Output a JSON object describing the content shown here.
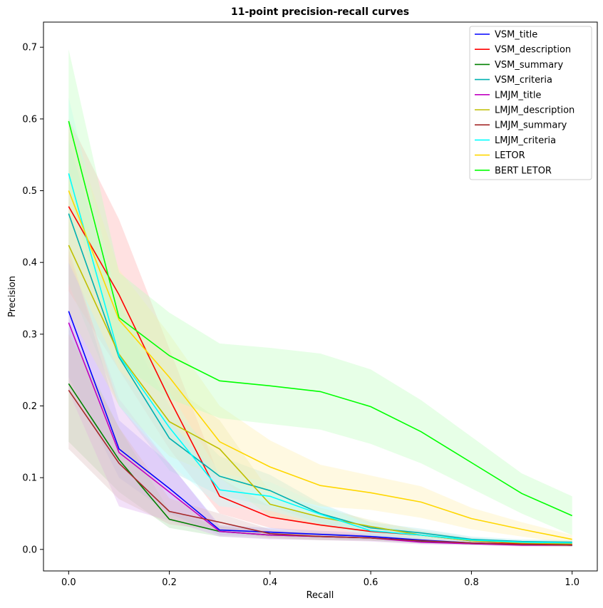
{
  "chart_data": {
    "type": "line",
    "title": "11-point precision-recall curves",
    "xlabel": "Recall",
    "ylabel": "Precision",
    "xlim": [
      -0.05,
      1.05
    ],
    "ylim": [
      -0.03,
      0.735
    ],
    "xticks": [
      0.0,
      0.2,
      0.4,
      0.6,
      0.8,
      1.0
    ],
    "xtick_labels": [
      "0.0",
      "0.2",
      "0.4",
      "0.6",
      "0.8",
      "1.0"
    ],
    "yticks": [
      0.0,
      0.1,
      0.2,
      0.3,
      0.4,
      0.5,
      0.6,
      0.7
    ],
    "ytick_labels": [
      "0.0",
      "0.1",
      "0.2",
      "0.3",
      "0.4",
      "0.5",
      "0.6",
      "0.7"
    ],
    "legend_position": "top-right",
    "grid": false,
    "x": [
      0.0,
      0.1,
      0.2,
      0.3,
      0.4,
      0.5,
      0.6,
      0.7,
      0.8,
      0.9,
      1.0
    ],
    "series": [
      {
        "name": "VSM_title",
        "color": "#0000ff",
        "values": [
          0.332,
          0.14,
          0.085,
          0.027,
          0.024,
          0.021,
          0.018,
          0.013,
          0.009,
          0.007,
          0.006
        ],
        "lower": [
          0.24,
          0.1,
          0.05,
          0.02,
          0.018,
          0.016,
          0.013,
          0.01,
          0.007,
          0.005,
          0.005
        ],
        "upper": [
          0.42,
          0.18,
          0.12,
          0.034,
          0.03,
          0.026,
          0.023,
          0.016,
          0.011,
          0.009,
          0.008
        ],
        "band_color": "#b0b0ff"
      },
      {
        "name": "VSM_description",
        "color": "#ff0000",
        "values": [
          0.478,
          0.355,
          0.21,
          0.074,
          0.045,
          0.034,
          0.025,
          0.02,
          0.012,
          0.008,
          0.007
        ],
        "lower": [
          0.36,
          0.25,
          0.14,
          0.05,
          0.03,
          0.022,
          0.017,
          0.014,
          0.008,
          0.006,
          0.005
        ],
        "upper": [
          0.6,
          0.46,
          0.28,
          0.1,
          0.06,
          0.046,
          0.033,
          0.026,
          0.016,
          0.011,
          0.009
        ],
        "band_color": "#ffb0b0"
      },
      {
        "name": "VSM_summary",
        "color": "#008000",
        "values": [
          0.231,
          0.125,
          0.042,
          0.025,
          0.02,
          0.018,
          0.016,
          0.011,
          0.008,
          0.007,
          0.006
        ],
        "lower": [
          0.15,
          0.08,
          0.03,
          0.018,
          0.015,
          0.013,
          0.012,
          0.008,
          0.006,
          0.005,
          0.004
        ],
        "upper": [
          0.31,
          0.17,
          0.054,
          0.032,
          0.025,
          0.023,
          0.02,
          0.014,
          0.01,
          0.009,
          0.008
        ],
        "band_color": "#b0e0b0"
      },
      {
        "name": "VSM_criteria",
        "color": "#00b0b0",
        "values": [
          0.468,
          0.268,
          0.155,
          0.102,
          0.082,
          0.05,
          0.03,
          0.023,
          0.014,
          0.011,
          0.01
        ],
        "lower": [
          0.37,
          0.2,
          0.11,
          0.075,
          0.06,
          0.036,
          0.022,
          0.017,
          0.01,
          0.008,
          0.007
        ],
        "upper": [
          0.57,
          0.33,
          0.2,
          0.13,
          0.104,
          0.064,
          0.038,
          0.029,
          0.018,
          0.014,
          0.013
        ],
        "band_color": "#b0e8e8"
      },
      {
        "name": "LMJM_title",
        "color": "#c000c0",
        "values": [
          0.316,
          0.135,
          0.08,
          0.025,
          0.02,
          0.018,
          0.016,
          0.01,
          0.008,
          0.006,
          0.006
        ],
        "lower": [
          0.22,
          0.06,
          0.04,
          0.018,
          0.014,
          0.013,
          0.011,
          0.007,
          0.006,
          0.004,
          0.004
        ],
        "upper": [
          0.41,
          0.21,
          0.12,
          0.032,
          0.026,
          0.023,
          0.021,
          0.013,
          0.01,
          0.008,
          0.008
        ],
        "band_color": "#e0b0f0"
      },
      {
        "name": "LMJM_description",
        "color": "#bfbf00",
        "values": [
          0.424,
          0.272,
          0.178,
          0.14,
          0.063,
          0.045,
          0.032,
          0.02,
          0.012,
          0.009,
          0.008
        ],
        "lower": [
          0.33,
          0.2,
          0.13,
          0.1,
          0.045,
          0.032,
          0.023,
          0.014,
          0.009,
          0.007,
          0.006
        ],
        "upper": [
          0.52,
          0.34,
          0.23,
          0.18,
          0.08,
          0.058,
          0.041,
          0.026,
          0.015,
          0.011,
          0.01
        ],
        "band_color": "#e8e8b0"
      },
      {
        "name": "LMJM_summary",
        "color": "#a52a2a",
        "values": [
          0.222,
          0.12,
          0.053,
          0.038,
          0.022,
          0.018,
          0.016,
          0.012,
          0.009,
          0.007,
          0.006
        ],
        "lower": [
          0.14,
          0.07,
          0.035,
          0.026,
          0.016,
          0.013,
          0.012,
          0.009,
          0.007,
          0.005,
          0.004
        ],
        "upper": [
          0.3,
          0.17,
          0.071,
          0.05,
          0.028,
          0.023,
          0.02,
          0.015,
          0.011,
          0.009,
          0.008
        ],
        "band_color": "#e0c0c0"
      },
      {
        "name": "LMJM_criteria",
        "color": "#00ffff",
        "values": [
          0.524,
          0.27,
          0.17,
          0.083,
          0.074,
          0.049,
          0.026,
          0.02,
          0.013,
          0.01,
          0.009
        ],
        "lower": [
          0.42,
          0.2,
          0.12,
          0.06,
          0.054,
          0.035,
          0.018,
          0.014,
          0.009,
          0.007,
          0.006
        ],
        "upper": [
          0.63,
          0.34,
          0.22,
          0.106,
          0.094,
          0.063,
          0.034,
          0.026,
          0.017,
          0.013,
          0.012
        ],
        "band_color": "#c0ffff"
      },
      {
        "name": "LETOR",
        "color": "#ffd700",
        "values": [
          0.5,
          0.32,
          0.24,
          0.15,
          0.115,
          0.089,
          0.079,
          0.066,
          0.043,
          0.028,
          0.014
        ],
        "lower": [
          0.4,
          0.25,
          0.18,
          0.1,
          0.078,
          0.06,
          0.055,
          0.044,
          0.028,
          0.018,
          0.008
        ],
        "upper": [
          0.6,
          0.39,
          0.3,
          0.2,
          0.152,
          0.118,
          0.103,
          0.088,
          0.058,
          0.038,
          0.02
        ],
        "band_color": "#fff0b0"
      },
      {
        "name": "BERT LETOR",
        "color": "#00ff00",
        "values": [
          0.597,
          0.323,
          0.27,
          0.235,
          0.228,
          0.22,
          0.199,
          0.164,
          0.121,
          0.078,
          0.047
        ],
        "lower": [
          0.5,
          0.26,
          0.21,
          0.183,
          0.175,
          0.167,
          0.147,
          0.12,
          0.085,
          0.05,
          0.02
        ],
        "upper": [
          0.697,
          0.386,
          0.33,
          0.287,
          0.281,
          0.273,
          0.251,
          0.208,
          0.157,
          0.106,
          0.074
        ],
        "band_color": "#c0ffc0"
      }
    ]
  }
}
